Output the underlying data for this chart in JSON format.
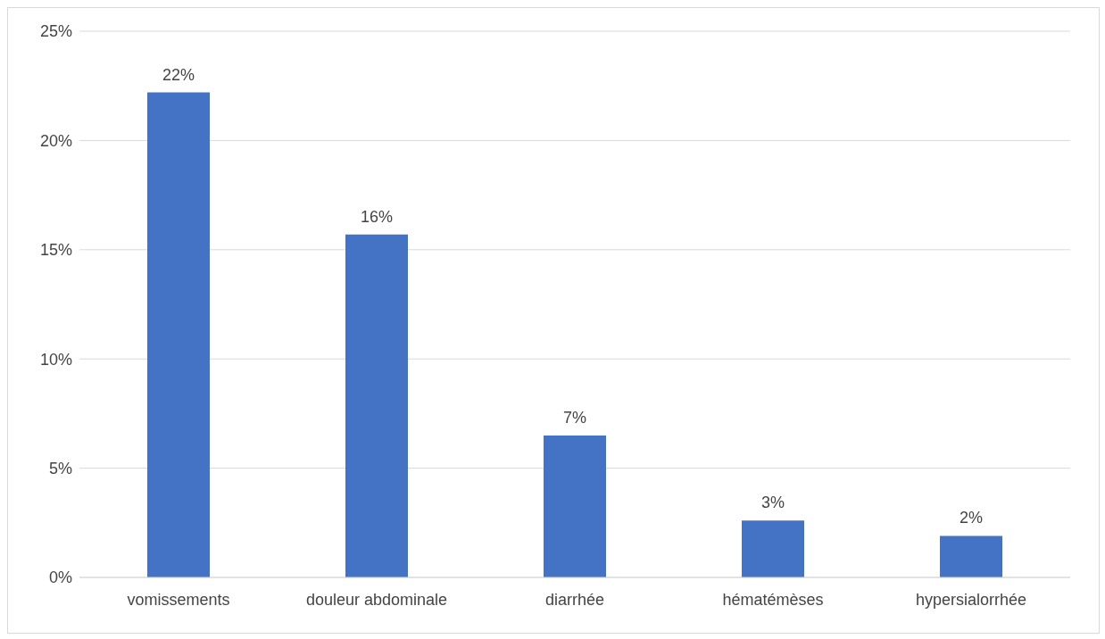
{
  "chart_data": {
    "type": "bar",
    "categories": [
      "vomissements",
      "douleur abdominale",
      "diarrhée",
      "hématémèses",
      "hypersialorrhée"
    ],
    "values": [
      22.2,
      15.7,
      6.5,
      2.6,
      1.9
    ],
    "value_labels": [
      "22%",
      "16%",
      "7%",
      "3%",
      "2%"
    ],
    "color": "#4472c4",
    "ylim": [
      0,
      25
    ],
    "yticks": [
      {
        "value": 0,
        "label": "0%"
      },
      {
        "value": 5,
        "label": "5%"
      },
      {
        "value": 10,
        "label": "10%"
      },
      {
        "value": 15,
        "label": "15%"
      },
      {
        "value": 20,
        "label": "20%"
      },
      {
        "value": 25,
        "label": "25%"
      }
    ],
    "grid": "y"
  }
}
